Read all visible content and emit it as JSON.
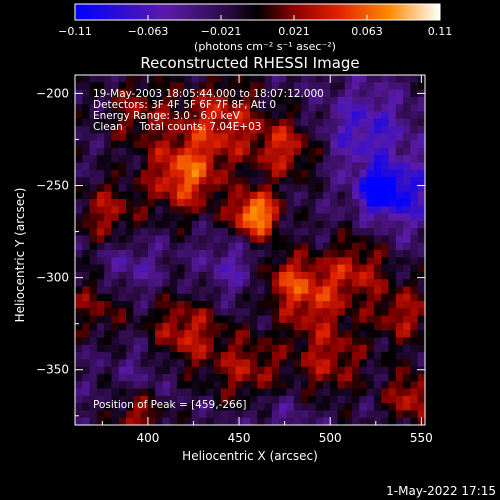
{
  "chart_data": {
    "type": "heatmap",
    "title": "Reconstructed RHESSI Image",
    "xlabel": "Heliocentric X (arcsec)",
    "ylabel": "Heliocentric Y (arcsec)",
    "xlim": [
      360,
      552
    ],
    "ylim": [
      -380,
      -190
    ],
    "x_ticks": [
      400,
      450,
      500,
      550
    ],
    "y_ticks": [
      -200,
      -250,
      -300,
      -350
    ],
    "colorbar": {
      "range": [
        -0.11,
        0.11
      ],
      "ticks": [
        "-0.11",
        "-0.063",
        "-0.021",
        "0.021",
        "0.063",
        "0.11"
      ],
      "unit_label": "(photons cm⁻² s⁻¹ asec⁻²)",
      "colormap": [
        "#0000ff",
        "#5a1aa8",
        "#2a0a40",
        "#000000",
        "#8a0000",
        "#e02000",
        "#ff8a00",
        "#ffffff"
      ]
    },
    "annotations": [
      "19-May-2003 18:05:44.000 to 18:07:12.000",
      "Detectors: 3F 4F 5F 6F 7F 8F, Att 0",
      "Energy Range: 3.0 - 6.0 keV",
      "Clean     Total counts: 7.04E+03"
    ],
    "peak_label": "Position of Peak = [459,-266]",
    "peak": {
      "x": 459,
      "y": -266,
      "value": 0.11
    },
    "blobs": [
      {
        "x": 459,
        "y": -266,
        "value": 0.11,
        "sigma": 9
      },
      {
        "x": 420,
        "y": -245,
        "value": 0.08,
        "sigma": 14
      },
      {
        "x": 440,
        "y": -215,
        "value": 0.06,
        "sigma": 16
      },
      {
        "x": 475,
        "y": -230,
        "value": 0.06,
        "sigma": 12
      },
      {
        "x": 395,
        "y": -210,
        "value": 0.04,
        "sigma": 14
      },
      {
        "x": 378,
        "y": -265,
        "value": 0.05,
        "sigma": 12
      },
      {
        "x": 490,
        "y": -310,
        "value": 0.06,
        "sigma": 14
      },
      {
        "x": 515,
        "y": -295,
        "value": 0.05,
        "sigma": 12
      },
      {
        "x": 540,
        "y": -320,
        "value": 0.05,
        "sigma": 12
      },
      {
        "x": 420,
        "y": -330,
        "value": 0.06,
        "sigma": 14
      },
      {
        "x": 455,
        "y": -350,
        "value": 0.05,
        "sigma": 14
      },
      {
        "x": 500,
        "y": -345,
        "value": 0.05,
        "sigma": 14
      },
      {
        "x": 395,
        "y": -375,
        "value": 0.05,
        "sigma": 10
      },
      {
        "x": 545,
        "y": -365,
        "value": 0.06,
        "sigma": 10
      },
      {
        "x": 475,
        "y": -300,
        "value": 0.04,
        "sigma": 10
      },
      {
        "x": 372,
        "y": -315,
        "value": 0.04,
        "sigma": 12
      },
      {
        "x": 527,
        "y": -253,
        "value": -0.1,
        "sigma": 8
      },
      {
        "x": 520,
        "y": -220,
        "value": -0.05,
        "sigma": 16
      },
      {
        "x": 545,
        "y": -255,
        "value": -0.05,
        "sigma": 14
      },
      {
        "x": 390,
        "y": -295,
        "value": -0.03,
        "sigma": 12
      },
      {
        "x": 445,
        "y": -295,
        "value": -0.03,
        "sigma": 12
      },
      {
        "x": 400,
        "y": -350,
        "value": -0.02,
        "sigma": 12
      },
      {
        "x": 470,
        "y": -375,
        "value": -0.02,
        "sigma": 12
      }
    ]
  },
  "footer": {
    "timestamp": "1-May-2022 17:15"
  }
}
